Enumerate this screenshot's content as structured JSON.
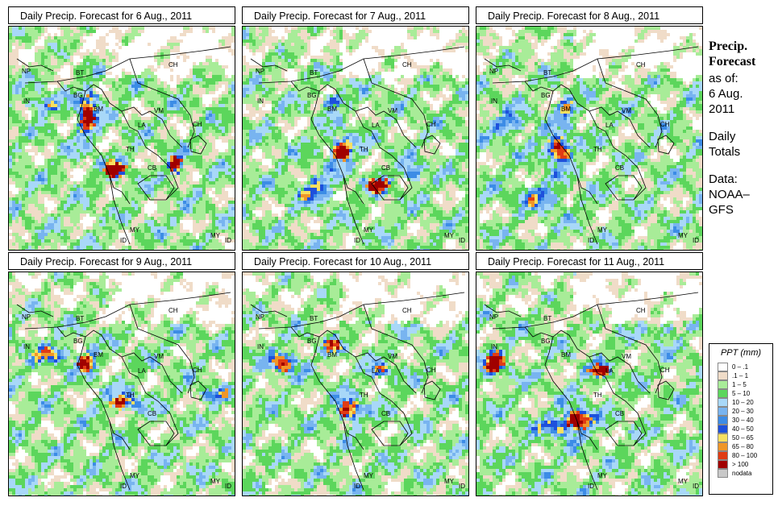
{
  "panels": [
    {
      "title": "Daily Precip. Forecast for  6 Aug., 2011"
    },
    {
      "title": "Daily Precip. Forecast for  7 Aug., 2011"
    },
    {
      "title": "Daily Precip. Forecast for  8 Aug., 2011"
    },
    {
      "title": "Daily Precip. Forecast for  9 Aug., 2011"
    },
    {
      "title": "Daily Precip. Forecast for  10 Aug., 2011"
    },
    {
      "title": "Daily Precip. Forecast for  11 Aug., 2011"
    }
  ],
  "country_labels": [
    "CH",
    "NP",
    "BT",
    "IN",
    "BG",
    "BM",
    "VM",
    "LA",
    "CH",
    "TH",
    "CB",
    "MY",
    "ID",
    "MY",
    "ID"
  ],
  "sidebar": {
    "heading_line1": "Precip.",
    "heading_line2": "Forecast",
    "asof": "as of:",
    "date_line1": "6 Aug.",
    "date_line2": "2011",
    "daily_line1": "Daily",
    "daily_line2": "Totals",
    "data_line1": "Data:",
    "data_line2": "NOAA–",
    "data_line3": "GFS"
  },
  "legend": {
    "title": "PPT (mm)",
    "classes": [
      {
        "label": "0 – .1",
        "color": "#ffffff"
      },
      {
        "label": ".1 – 1",
        "color": "#f0dcc8"
      },
      {
        "label": "1 – 5",
        "color": "#a8ec98"
      },
      {
        "label": "5 – 10",
        "color": "#5cd65c"
      },
      {
        "label": "10 – 20",
        "color": "#a8d8f8"
      },
      {
        "label": "20 – 30",
        "color": "#78b4f0"
      },
      {
        "label": "30 – 40",
        "color": "#3c8ce6"
      },
      {
        "label": "40 – 50",
        "color": "#1e50dc"
      },
      {
        "label": "50 – 65",
        "color": "#f8e060"
      },
      {
        "label": "65 – 80",
        "color": "#f09628"
      },
      {
        "label": "80 – 100",
        "color": "#e03c14"
      },
      {
        "label": "> 100",
        "color": "#a00000"
      },
      {
        "label": "nodata",
        "color": "#c8c8c8"
      }
    ]
  }
}
